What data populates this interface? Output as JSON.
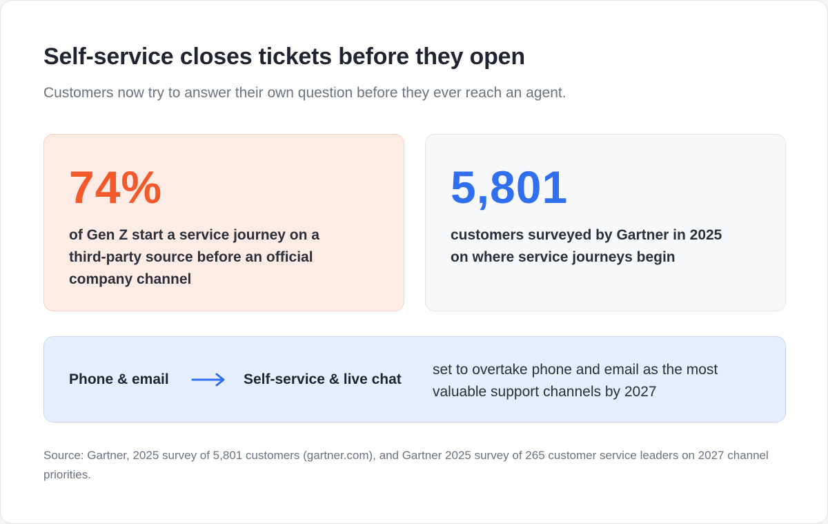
{
  "header": {
    "title": "Self-service closes tickets before they open",
    "subtitle": "Customers now try to answer their own question before they ever reach an agent."
  },
  "stats": [
    {
      "value": "74%",
      "description": "of Gen Z start a service journey on a third-party source before an official company channel",
      "accent": "#f25a2c"
    },
    {
      "value": "5,801",
      "description": "customers surveyed by Gartner in 2025 on where service journeys begin",
      "accent": "#2f6ff0"
    }
  ],
  "shift": {
    "from": "Phone & email",
    "arrow_icon": "arrow-right-icon",
    "to": "Self-service & live chat",
    "description": "set to overtake phone and email as the most valuable support channels by 2027",
    "accent": "#2f6ff0"
  },
  "source": "Source: Gartner, 2025 survey of 5,801 customers (gartner.com), and Gartner 2025 survey of 265 customer service leaders on 2027 channel priorities."
}
